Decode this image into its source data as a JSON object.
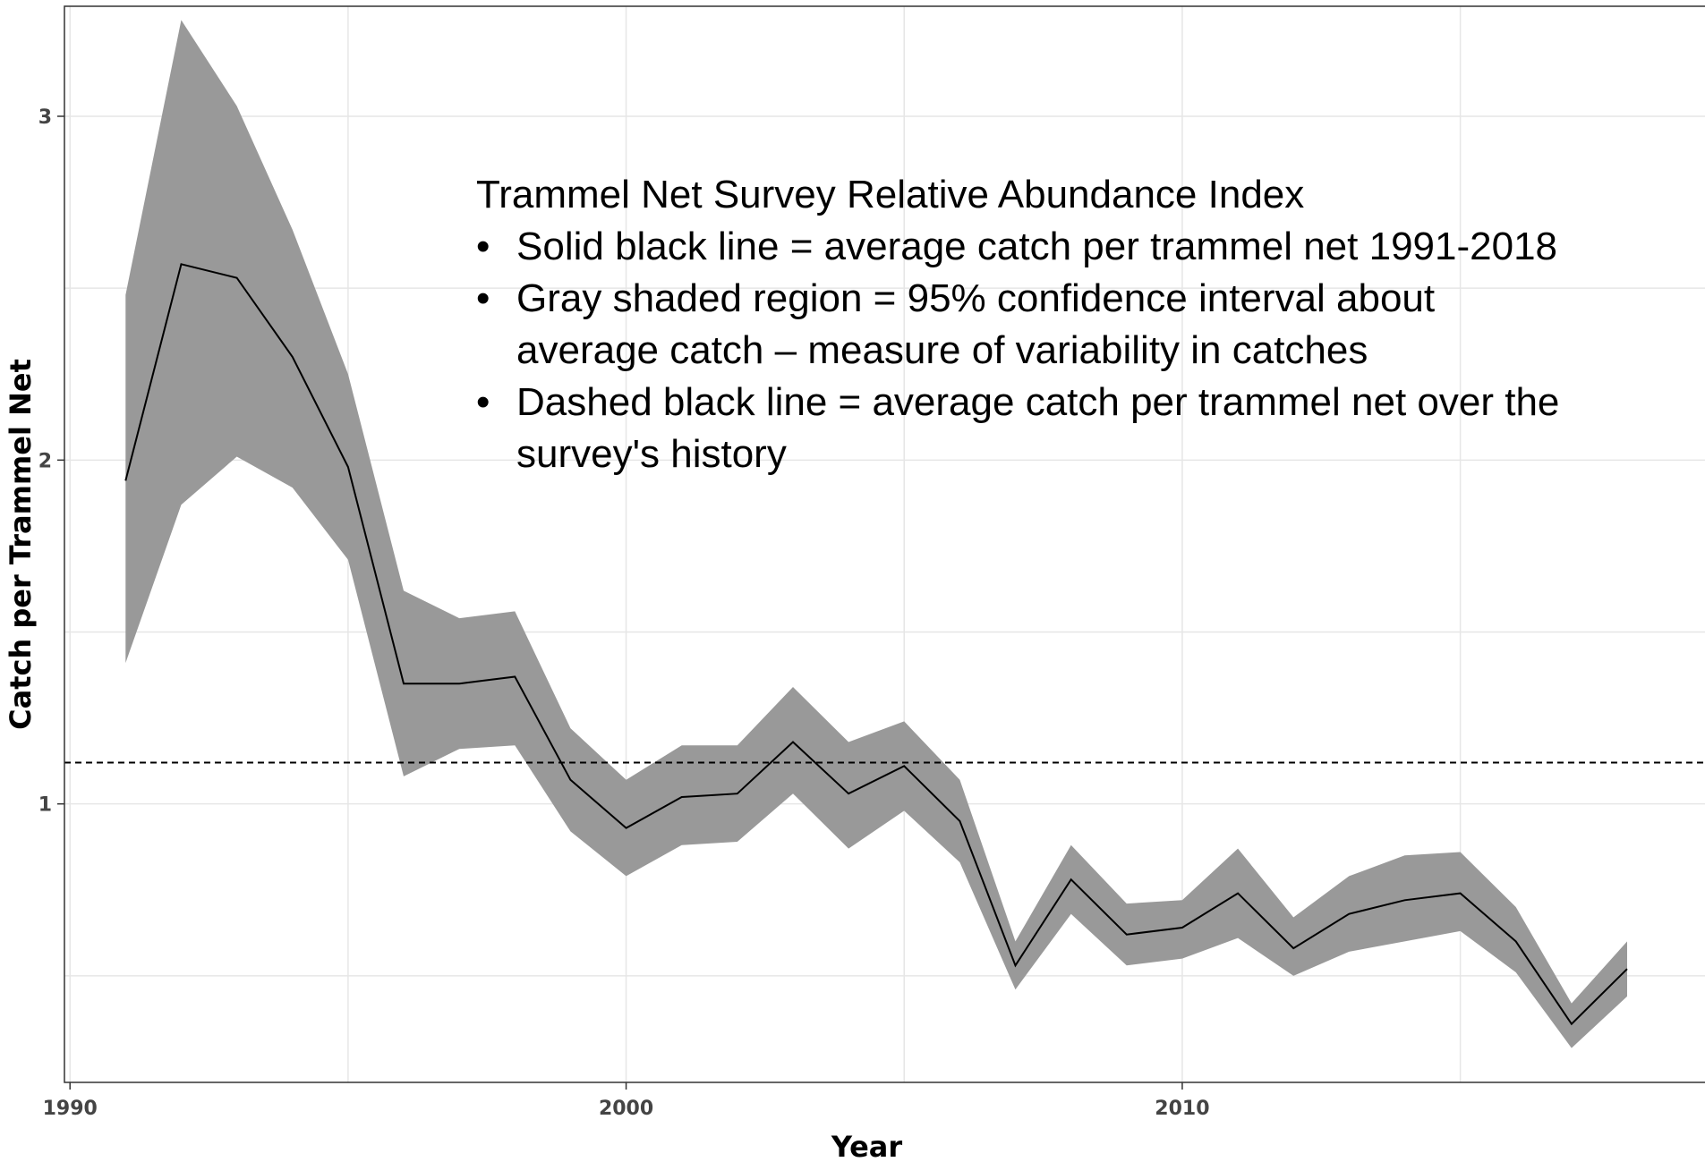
{
  "chart_data": {
    "type": "line",
    "xlabel": "Year",
    "ylabel": "Catch per Trammel Net",
    "xlim": [
      1989.9,
      2019.4
    ],
    "ylim": [
      0.19,
      3.32
    ],
    "x_ticks": [
      1990,
      2000,
      2010
    ],
    "x_tick_labels": [
      "1990",
      "2000",
      "2010"
    ],
    "y_ticks": [
      1,
      2,
      3
    ],
    "y_tick_labels": [
      "1",
      "2",
      "3"
    ],
    "grid": true,
    "x": [
      1991,
      1992,
      1993,
      1994,
      1995,
      1996,
      1997,
      1998,
      1999,
      2000,
      2001,
      2002,
      2003,
      2004,
      2005,
      2006,
      2007,
      2008,
      2009,
      2010,
      2011,
      2012,
      2013,
      2014,
      2015,
      2016,
      2017,
      2018
    ],
    "series": [
      {
        "values": [
          1.94,
          2.57,
          2.53,
          2.3,
          1.98,
          1.35,
          1.35,
          1.37,
          1.07,
          0.93,
          1.02,
          1.03,
          1.18,
          1.03,
          1.11,
          0.95,
          0.53,
          0.78,
          0.62,
          0.64,
          0.74,
          0.58,
          0.68,
          0.72,
          0.74,
          0.6,
          0.36,
          0.52
        ],
        "ci_lower": [
          1.41,
          1.87,
          2.01,
          1.92,
          1.71,
          1.08,
          1.16,
          1.17,
          0.92,
          0.79,
          0.88,
          0.89,
          1.03,
          0.87,
          0.98,
          0.83,
          0.46,
          0.68,
          0.53,
          0.55,
          0.61,
          0.5,
          0.57,
          0.6,
          0.63,
          0.51,
          0.29,
          0.44
        ],
        "ci_upper": [
          2.48,
          3.28,
          3.03,
          2.67,
          2.25,
          1.62,
          1.54,
          1.56,
          1.22,
          1.07,
          1.17,
          1.17,
          1.34,
          1.18,
          1.24,
          1.07,
          0.6,
          0.88,
          0.71,
          0.72,
          0.87,
          0.67,
          0.79,
          0.85,
          0.86,
          0.7,
          0.42,
          0.6
        ]
      }
    ],
    "reference_line": {
      "y": 1.12,
      "style": "dashed"
    },
    "colors": {
      "line": "#000000",
      "band": "#999999",
      "grid": "#e6e6e6",
      "border": "#333333"
    },
    "annotations": {
      "heading": "Trammel Net Survey Relative Abundance Index",
      "bullets": [
        {
          "lines": [
            "Solid black line = average catch per trammel net 1991-2018"
          ]
        },
        {
          "lines": [
            "Gray shaded region = 95% confidence interval about",
            "average catch – measure of variability in catches"
          ]
        },
        {
          "lines": [
            "Dashed black line = average catch per trammel net over the",
            "survey's history"
          ]
        }
      ],
      "bullet_glyph": "•"
    }
  }
}
